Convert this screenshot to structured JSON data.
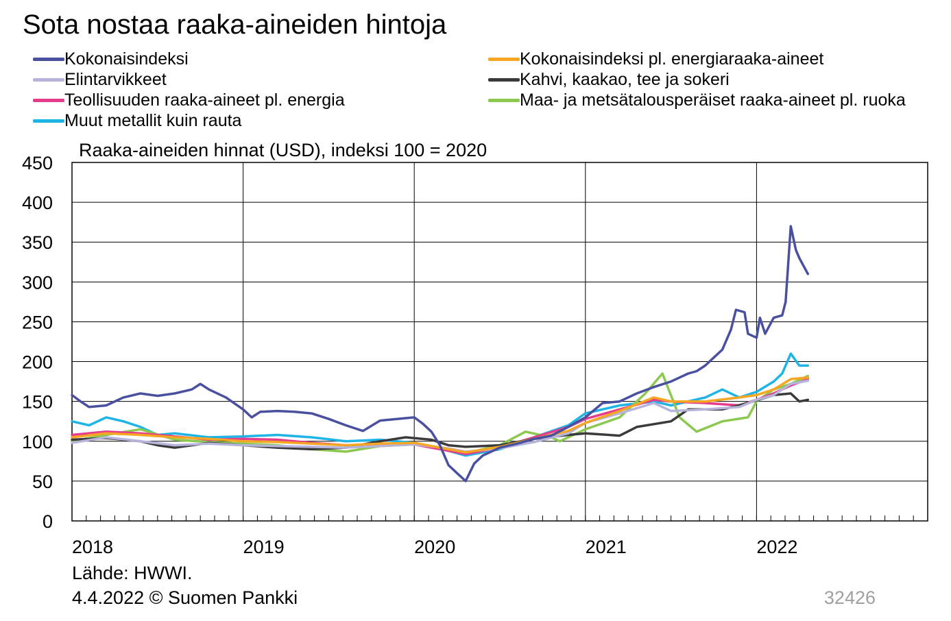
{
  "title": "Sota nostaa raaka-aineiden hintoja",
  "subtitle": "Raaka-aineiden hinnat (USD), indeksi 100 = 2020",
  "source": "Lähde: HWWI.",
  "date_line": "4.4.2022 © Suomen Pankki",
  "chart_code": "32426",
  "legend": [
    {
      "label": "Kokonaisindeksi",
      "color": "#4a50a0"
    },
    {
      "label": "Kokonaisindeksi pl. energiaraaka-aineet",
      "color": "#f5a623"
    },
    {
      "label": "Elintarvikkeet",
      "color": "#b7b4dc"
    },
    {
      "label": "Kahvi, kaakao, tee ja sokeri",
      "color": "#3a3a3a"
    },
    {
      "label": "Teollisuuden raaka-aineet pl. energia",
      "color": "#e63c8c"
    },
    {
      "label": "Maa- ja metsätalousperäiset raaka-aineet pl. ruoka",
      "color": "#8cc850"
    },
    {
      "label": "Muut metallit kuin rauta",
      "color": "#1eb4e6"
    }
  ],
  "chart_data": {
    "type": "line",
    "title": "Sota nostaa raaka-aineiden hintoja",
    "ylabel": "Raaka-aineiden hinnat (USD), indeksi 100 = 2020",
    "ylim": [
      0,
      450
    ],
    "yticks": [
      0,
      50,
      100,
      150,
      200,
      250,
      300,
      350,
      400,
      450
    ],
    "xlim": [
      2018,
      2023
    ],
    "xtick_labels": [
      "2018",
      "2019",
      "2020",
      "2021",
      "2022"
    ],
    "xticks": [
      2018,
      2019,
      2020,
      2021,
      2022
    ],
    "grid": true,
    "legend_position": "top",
    "series": [
      {
        "name": "Kokonaisindeksi",
        "color": "#4a50a0",
        "points": [
          [
            2018.0,
            158
          ],
          [
            2018.05,
            150
          ],
          [
            2018.1,
            143
          ],
          [
            2018.2,
            145
          ],
          [
            2018.3,
            155
          ],
          [
            2018.4,
            160
          ],
          [
            2018.5,
            157
          ],
          [
            2018.6,
            160
          ],
          [
            2018.7,
            165
          ],
          [
            2018.75,
            172
          ],
          [
            2018.8,
            165
          ],
          [
            2018.9,
            155
          ],
          [
            2019.0,
            140
          ],
          [
            2019.05,
            130
          ],
          [
            2019.1,
            137
          ],
          [
            2019.2,
            138
          ],
          [
            2019.3,
            137
          ],
          [
            2019.4,
            135
          ],
          [
            2019.5,
            128
          ],
          [
            2019.6,
            120
          ],
          [
            2019.7,
            113
          ],
          [
            2019.8,
            126
          ],
          [
            2019.9,
            128
          ],
          [
            2020.0,
            130
          ],
          [
            2020.05,
            122
          ],
          [
            2020.1,
            112
          ],
          [
            2020.15,
            95
          ],
          [
            2020.2,
            70
          ],
          [
            2020.25,
            60
          ],
          [
            2020.3,
            50
          ],
          [
            2020.35,
            72
          ],
          [
            2020.4,
            82
          ],
          [
            2020.5,
            92
          ],
          [
            2020.6,
            97
          ],
          [
            2020.7,
            103
          ],
          [
            2020.8,
            107
          ],
          [
            2020.9,
            118
          ],
          [
            2021.0,
            130
          ],
          [
            2021.1,
            148
          ],
          [
            2021.2,
            150
          ],
          [
            2021.3,
            160
          ],
          [
            2021.4,
            168
          ],
          [
            2021.5,
            175
          ],
          [
            2021.6,
            185
          ],
          [
            2021.65,
            188
          ],
          [
            2021.7,
            195
          ],
          [
            2021.75,
            205
          ],
          [
            2021.8,
            215
          ],
          [
            2021.85,
            240
          ],
          [
            2021.88,
            265
          ],
          [
            2021.93,
            262
          ],
          [
            2021.95,
            235
          ],
          [
            2022.0,
            230
          ],
          [
            2022.02,
            255
          ],
          [
            2022.05,
            235
          ],
          [
            2022.1,
            255
          ],
          [
            2022.15,
            258
          ],
          [
            2022.17,
            275
          ],
          [
            2022.2,
            370
          ],
          [
            2022.23,
            340
          ],
          [
            2022.25,
            330
          ],
          [
            2022.3,
            310
          ]
        ]
      },
      {
        "name": "Kokonaisindeksi pl. energiaraaka-aineet",
        "color": "#f5a623",
        "points": [
          [
            2018.0,
            105
          ],
          [
            2018.2,
            110
          ],
          [
            2018.4,
            108
          ],
          [
            2018.6,
            105
          ],
          [
            2018.8,
            103
          ],
          [
            2019.0,
            100
          ],
          [
            2019.2,
            99
          ],
          [
            2019.4,
            97
          ],
          [
            2019.6,
            95
          ],
          [
            2019.8,
            97
          ],
          [
            2020.0,
            98
          ],
          [
            2020.2,
            90
          ],
          [
            2020.3,
            86
          ],
          [
            2020.5,
            93
          ],
          [
            2020.7,
            103
          ],
          [
            2020.9,
            113
          ],
          [
            2021.0,
            123
          ],
          [
            2021.2,
            138
          ],
          [
            2021.4,
            155
          ],
          [
            2021.5,
            150
          ],
          [
            2021.7,
            150
          ],
          [
            2021.9,
            155
          ],
          [
            2022.0,
            158
          ],
          [
            2022.1,
            165
          ],
          [
            2022.2,
            178
          ],
          [
            2022.3,
            180
          ]
        ]
      },
      {
        "name": "Elintarvikkeet",
        "color": "#b7b4dc",
        "points": [
          [
            2018.0,
            98
          ],
          [
            2018.2,
            105
          ],
          [
            2018.4,
            100
          ],
          [
            2018.6,
            95
          ],
          [
            2018.8,
            97
          ],
          [
            2019.0,
            95
          ],
          [
            2019.2,
            94
          ],
          [
            2019.4,
            93
          ],
          [
            2019.6,
            92
          ],
          [
            2019.8,
            94
          ],
          [
            2020.0,
            96
          ],
          [
            2020.2,
            91
          ],
          [
            2020.3,
            87
          ],
          [
            2020.5,
            91
          ],
          [
            2020.7,
            99
          ],
          [
            2020.9,
            110
          ],
          [
            2021.0,
            123
          ],
          [
            2021.2,
            135
          ],
          [
            2021.4,
            148
          ],
          [
            2021.5,
            138
          ],
          [
            2021.7,
            140
          ],
          [
            2021.9,
            143
          ],
          [
            2022.0,
            152
          ],
          [
            2022.1,
            158
          ],
          [
            2022.2,
            172
          ],
          [
            2022.3,
            176
          ]
        ]
      },
      {
        "name": "Kahvi, kaakao, tee ja sokeri",
        "color": "#3a3a3a",
        "points": [
          [
            2018.0,
            102
          ],
          [
            2018.2,
            104
          ],
          [
            2018.4,
            100
          ],
          [
            2018.5,
            95
          ],
          [
            2018.6,
            92
          ],
          [
            2018.8,
            98
          ],
          [
            2019.0,
            95
          ],
          [
            2019.2,
            92
          ],
          [
            2019.4,
            90
          ],
          [
            2019.6,
            92
          ],
          [
            2019.8,
            100
          ],
          [
            2019.95,
            105
          ],
          [
            2020.1,
            102
          ],
          [
            2020.2,
            95
          ],
          [
            2020.3,
            93
          ],
          [
            2020.5,
            95
          ],
          [
            2020.7,
            103
          ],
          [
            2020.9,
            108
          ],
          [
            2021.0,
            110
          ],
          [
            2021.2,
            107
          ],
          [
            2021.3,
            118
          ],
          [
            2021.5,
            125
          ],
          [
            2021.6,
            140
          ],
          [
            2021.8,
            140
          ],
          [
            2021.95,
            148
          ],
          [
            2022.1,
            158
          ],
          [
            2022.2,
            160
          ],
          [
            2022.25,
            150
          ],
          [
            2022.3,
            152
          ]
        ]
      },
      {
        "name": "Teollisuuden raaka-aineet pl. energia",
        "color": "#e63c8c",
        "points": [
          [
            2018.0,
            108
          ],
          [
            2018.2,
            112
          ],
          [
            2018.4,
            110
          ],
          [
            2018.6,
            106
          ],
          [
            2018.8,
            102
          ],
          [
            2019.0,
            103
          ],
          [
            2019.2,
            102
          ],
          [
            2019.4,
            98
          ],
          [
            2019.6,
            95
          ],
          [
            2019.8,
            96
          ],
          [
            2020.0,
            96
          ],
          [
            2020.2,
            88
          ],
          [
            2020.3,
            84
          ],
          [
            2020.5,
            92
          ],
          [
            2020.7,
            105
          ],
          [
            2020.9,
            118
          ],
          [
            2021.0,
            128
          ],
          [
            2021.2,
            140
          ],
          [
            2021.4,
            152
          ],
          [
            2021.5,
            150
          ],
          [
            2021.7,
            148
          ],
          [
            2021.9,
            145
          ],
          [
            2022.0,
            152
          ],
          [
            2022.1,
            160
          ],
          [
            2022.2,
            170
          ],
          [
            2022.3,
            178
          ]
        ]
      },
      {
        "name": "Maa- ja metsätalousperäiset raaka-aineet pl. ruoka",
        "color": "#8cc850",
        "points": [
          [
            2018.0,
            100
          ],
          [
            2018.2,
            108
          ],
          [
            2018.4,
            115
          ],
          [
            2018.6,
            102
          ],
          [
            2018.8,
            99
          ],
          [
            2019.0,
            97
          ],
          [
            2019.2,
            95
          ],
          [
            2019.4,
            90
          ],
          [
            2019.6,
            87
          ],
          [
            2019.8,
            94
          ],
          [
            2020.0,
            96
          ],
          [
            2020.2,
            90
          ],
          [
            2020.3,
            85
          ],
          [
            2020.5,
            95
          ],
          [
            2020.65,
            112
          ],
          [
            2020.8,
            105
          ],
          [
            2020.85,
            100
          ],
          [
            2021.0,
            115
          ],
          [
            2021.2,
            130
          ],
          [
            2021.35,
            160
          ],
          [
            2021.45,
            185
          ],
          [
            2021.55,
            130
          ],
          [
            2021.65,
            112
          ],
          [
            2021.8,
            125
          ],
          [
            2021.95,
            130
          ],
          [
            2022.0,
            150
          ],
          [
            2022.1,
            165
          ],
          [
            2022.2,
            172
          ],
          [
            2022.3,
            182
          ]
        ]
      },
      {
        "name": "Muut metallit kuin rauta",
        "color": "#1eb4e6",
        "points": [
          [
            2018.0,
            125
          ],
          [
            2018.1,
            120
          ],
          [
            2018.2,
            130
          ],
          [
            2018.3,
            125
          ],
          [
            2018.4,
            118
          ],
          [
            2018.5,
            108
          ],
          [
            2018.6,
            110
          ],
          [
            2018.8,
            105
          ],
          [
            2019.0,
            106
          ],
          [
            2019.2,
            108
          ],
          [
            2019.4,
            105
          ],
          [
            2019.6,
            100
          ],
          [
            2019.8,
            102
          ],
          [
            2020.0,
            98
          ],
          [
            2020.2,
            88
          ],
          [
            2020.3,
            82
          ],
          [
            2020.5,
            90
          ],
          [
            2020.7,
            105
          ],
          [
            2020.9,
            120
          ],
          [
            2021.0,
            135
          ],
          [
            2021.2,
            145
          ],
          [
            2021.4,
            150
          ],
          [
            2021.5,
            145
          ],
          [
            2021.7,
            155
          ],
          [
            2021.8,
            165
          ],
          [
            2021.9,
            155
          ],
          [
            2022.0,
            162
          ],
          [
            2022.1,
            175
          ],
          [
            2022.15,
            185
          ],
          [
            2022.2,
            210
          ],
          [
            2022.25,
            195
          ],
          [
            2022.3,
            195
          ]
        ]
      }
    ]
  }
}
